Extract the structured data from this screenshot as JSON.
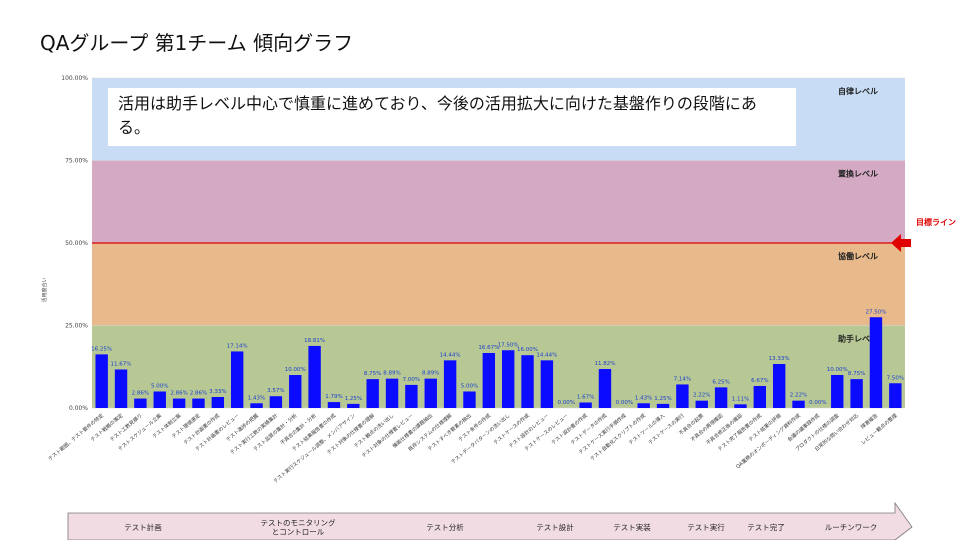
{
  "chart_data": {
    "type": "bar",
    "title": "QAグループ 第1チーム 傾向グラフ",
    "y_label": "活用度合い",
    "annotation": "活用は助手レベル中心で慎重に進めており、今後の活用拡大に向けた基盤作りの段階にある。",
    "color": "#0b0bff",
    "ylim": [
      0,
      100
    ],
    "yticks": [
      {
        "value": 0,
        "label": "0.00%"
      },
      {
        "value": 25,
        "label": "25.00%"
      },
      {
        "value": 50,
        "label": "50.00%"
      },
      {
        "value": 75,
        "label": "75.00%"
      },
      {
        "value": 100,
        "label": "100.00%"
      }
    ],
    "bands": [
      {
        "from": 0,
        "to": 25,
        "label": "助手レベル",
        "color": "#b7c894"
      },
      {
        "from": 25,
        "to": 50,
        "label": "協働レベル",
        "color": "#e8b98a"
      },
      {
        "from": 50,
        "to": 75,
        "label": "置換レベル",
        "color": "#d4a9c3"
      },
      {
        "from": 75,
        "to": 100,
        "label": "自律レベル",
        "color": "#c8dcf6"
      }
    ],
    "target": {
      "value": 50,
      "label": "目標ライン",
      "color": "#e00000"
    },
    "categories": [
      "テスト範囲、テスト要件の特定",
      "テスト戦略の策定",
      "テスト工数見積り",
      "テストスケジュール立案",
      "テスト体制立案",
      "テスト環境選定",
      "テスト計画書の作成",
      "テスト計画書のレビュー",
      "テスト進捗の把握",
      "テスト実行工数の実績集計",
      "テスト品質の集計・分析",
      "不具合の集計・分析",
      "テスト結果報告書の作成",
      "テスト実行スケジュール調整、メンバアサイン",
      "テスト対象の仕様書の理解",
      "テスト観点の洗い出し",
      "テスト対象の仕様書レビュー",
      "機能仕様書の課題抽出",
      "既存システムの仕様理解",
      "テストすべき要素の抽出",
      "テスト条件の作成",
      "テストデータパターンの洗い出し",
      "テストケースの作成",
      "テスト設計のレビュー",
      "テストケースのレビュー",
      "テスト設計書の作成",
      "テストデータの作成",
      "テストケース実行手順作成",
      "テスト自動化スクリプトの作成",
      "テストツールの導入",
      "テストケースの実行",
      "不具合の起票",
      "不具合の再現確認",
      "不具合修正後の確認",
      "テスト完了報告書の作成",
      "テスト結果の評価",
      "QA業務のオンボーディング資料作成",
      "会議の議事録作成",
      "プロダクトの仕様の調査",
      "日常的な問い合わせ対応",
      "障害報告",
      "レビュー観点の整理"
    ],
    "values": [
      16.25,
      11.67,
      2.86,
      5.0,
      2.86,
      2.86,
      3.33,
      17.14,
      1.43,
      3.57,
      10.0,
      18.81,
      1.79,
      1.25,
      8.75,
      8.89,
      7.0,
      8.89,
      14.44,
      5.0,
      16.67,
      17.5,
      16.0,
      14.44,
      0,
      1.67,
      11.82,
      0,
      1.43,
      1.25,
      7.14,
      2.22,
      6.25,
      1.11,
      6.67,
      13.33,
      2.22,
      0,
      10.0,
      8.75,
      27.5,
      7.5
    ],
    "value_labels": [
      "16.25%",
      "11.67%",
      "2.86%",
      "5.00%",
      "2.86%",
      "2.86%",
      "3.33%",
      "17.14%",
      "1.43%",
      "3.57%",
      "10.00%",
      "18.81%",
      "1.79%",
      "1.25%",
      "8.75%",
      "8.89%",
      "7.00%",
      "8.89%",
      "14.44%",
      "5.00%",
      "16.67%",
      "17.50%",
      "16.00%",
      "14.44%",
      "0.00%",
      "1.67%",
      "11.82%",
      "0.00%",
      "1.43%",
      "1.25%",
      "7.14%",
      "2.22%",
      "6.25%",
      "1.11%",
      "6.67%",
      "13.33%",
      "2.22%",
      "0.00%",
      "10.00%",
      "8.75%",
      "27.50%",
      "7.50%"
    ],
    "phases": [
      [
        "テスト計画"
      ],
      [
        "テストのモニタリング",
        "とコントロール"
      ],
      [
        "テスト分析"
      ],
      [
        "テスト設計"
      ],
      [
        "テスト実装"
      ],
      [
        "テスト実行"
      ],
      [
        "テスト完了"
      ],
      [
        "ルーチンワーク"
      ]
    ]
  }
}
